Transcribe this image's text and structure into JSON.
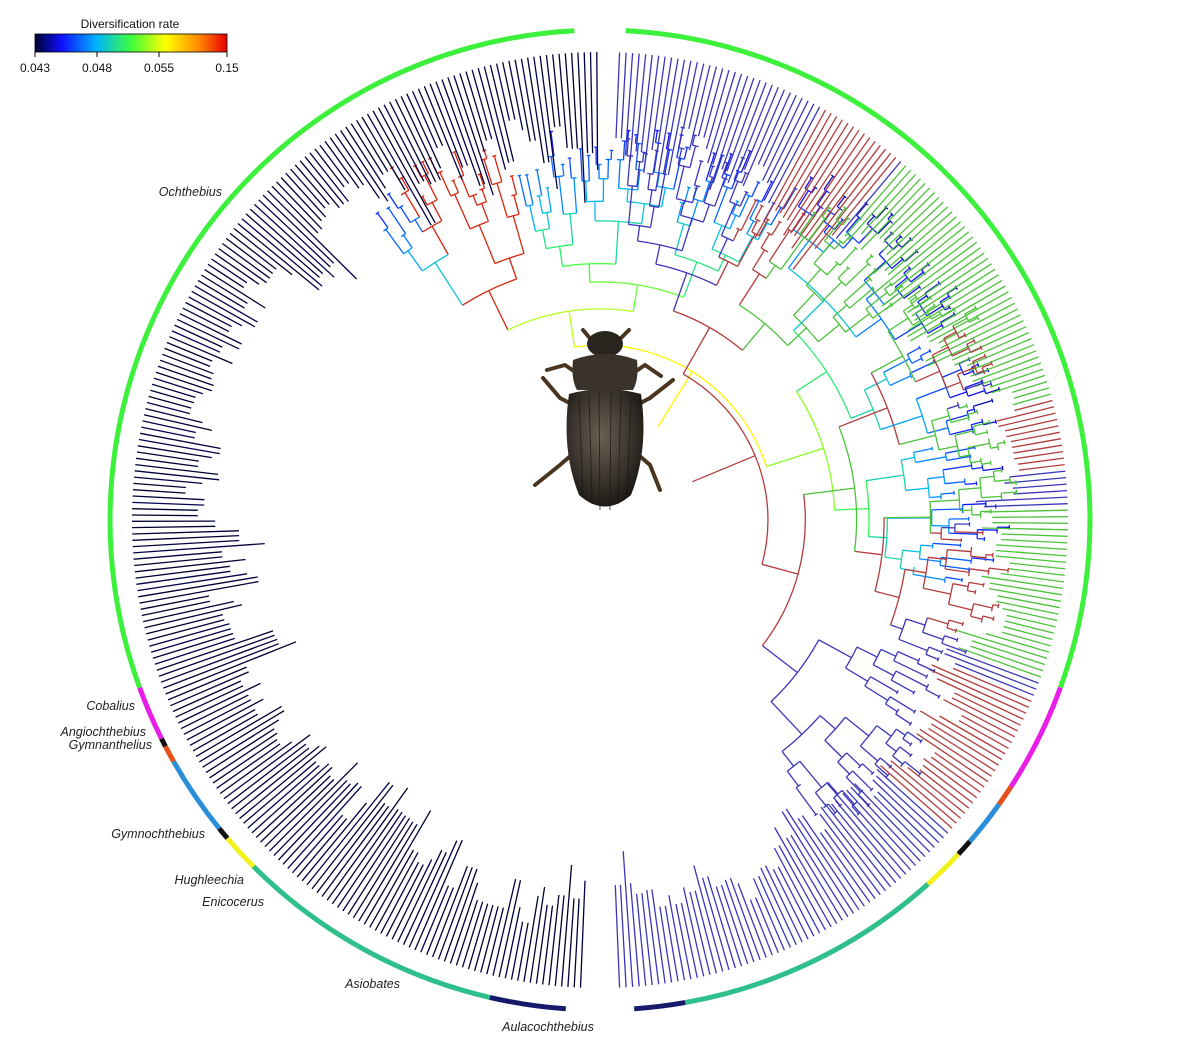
{
  "legend": {
    "title": "Diversification rate",
    "ticks": [
      "0.043",
      "0.048",
      "0.055",
      "0.15"
    ],
    "gradient_colors": [
      "#000033",
      "#1010ff",
      "#00b4ff",
      "#3cff3c",
      "#ffff00",
      "#ff8c00",
      "#e60000"
    ]
  },
  "colors": {
    "left_clade_high": "#e67e00",
    "left_clade_mid": "#ffe600",
    "left_clade_low": "#1d2bd6",
    "right_blue": "#3b36b8",
    "right_green": "#4cc23a",
    "right_red": "#b23c3c",
    "asiobates_red": "#d8230f"
  },
  "genera": [
    {
      "name": "Ochthebius",
      "color": "#3cf03c"
    },
    {
      "name": "Cobalius",
      "color": "#e81ee8"
    },
    {
      "name": "Angiochthebius",
      "color": "#111111"
    },
    {
      "name": "Gymnanthelius",
      "color": "#e8501a"
    },
    {
      "name": "Gymnochthebius",
      "color": "#2a8fd8"
    },
    {
      "name": "Hughleechia",
      "color": "#111111"
    },
    {
      "name": "Enicocerus",
      "color": "#f2f21e"
    },
    {
      "name": "Asiobates",
      "color": "#2fbf8a"
    },
    {
      "name": "Aulacochthebius",
      "color": "#151a6b"
    }
  ],
  "center_image": "beetle-photo"
}
